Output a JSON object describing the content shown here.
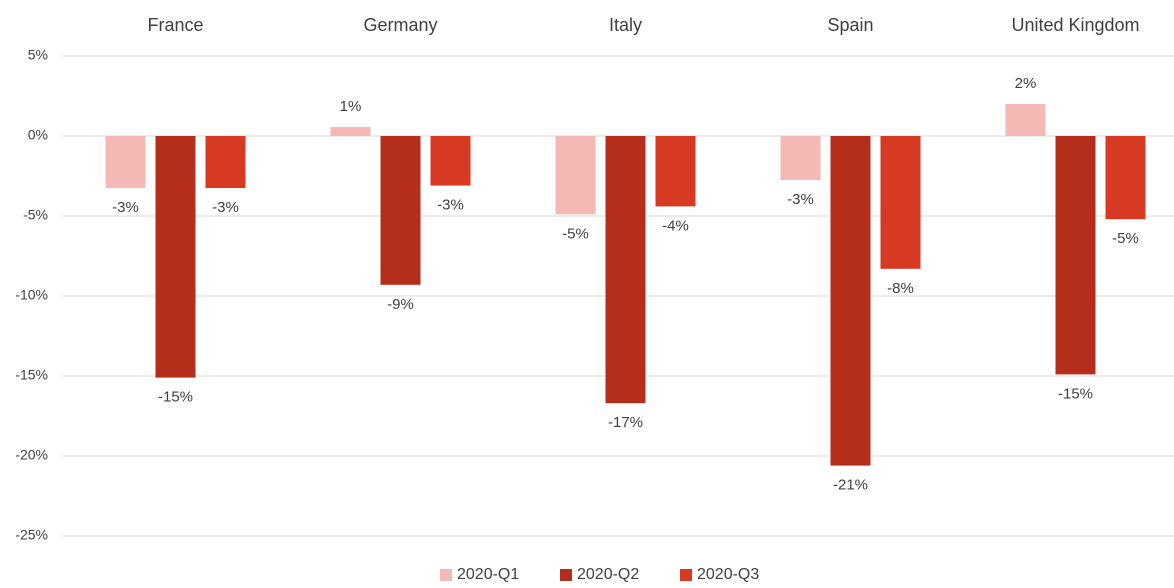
{
  "chart_data": {
    "type": "bar",
    "categories": [
      "France",
      "Germany",
      "Italy",
      "Spain",
      "United Kingdom"
    ],
    "series": [
      {
        "name": "2020-Q1",
        "color": "#f4b9b5",
        "values": [
          -3.25,
          0.56,
          -4.9,
          -2.75,
          2.0
        ],
        "value_labels": [
          "-3%",
          "1%",
          "-5%",
          "-3%",
          "2%"
        ]
      },
      {
        "name": "2020-Q2",
        "color": "#b52d1b",
        "values": [
          -15.1,
          -9.3,
          -16.7,
          -20.6,
          -14.9
        ],
        "value_labels": [
          "-15%",
          "-9%",
          "-17%",
          "-21%",
          "-15%"
        ]
      },
      {
        "name": "2020-Q3",
        "color": "#d63a22",
        "values": [
          -3.25,
          -3.1,
          -4.4,
          -8.3,
          -5.2
        ],
        "value_labels": [
          "-3%",
          "-3%",
          "-4%",
          "-8%",
          "-5%"
        ]
      }
    ],
    "ylim": [
      -25,
      5
    ],
    "yticks": [
      {
        "value": -25,
        "label": "-25%"
      },
      {
        "value": -20,
        "label": "-20%"
      },
      {
        "value": -15,
        "label": "-15%"
      },
      {
        "value": -10,
        "label": "-10%"
      },
      {
        "value": -5,
        "label": "-5%"
      },
      {
        "value": 0,
        "label": "0%"
      },
      {
        "value": 5,
        "label": "5%"
      }
    ],
    "grid": true,
    "legend": "bottom"
  }
}
